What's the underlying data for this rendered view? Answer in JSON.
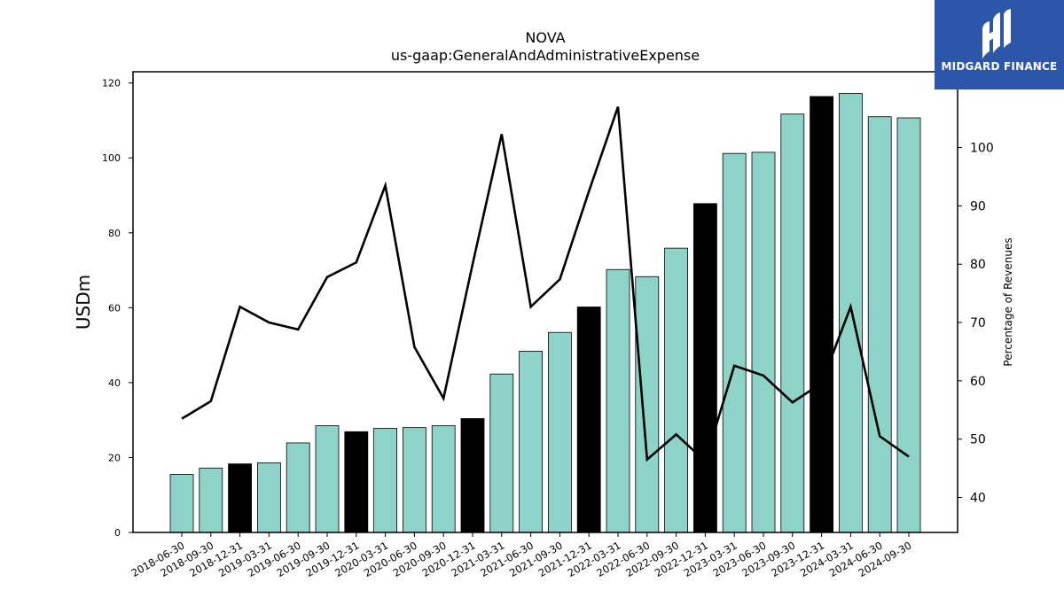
{
  "chart_data": {
    "type": "bar",
    "title": "NOVA",
    "subtitle": "us-gaap:GeneralAndAdministrativeExpense",
    "ylabel": "USDm",
    "y2label": "Percentage of Revenues",
    "ylim": [
      0,
      123
    ],
    "y2lim": [
      34,
      113
    ],
    "yticks": [
      0,
      20,
      40,
      60,
      80,
      100,
      120
    ],
    "y2ticks": [
      40,
      50,
      60,
      70,
      80,
      90,
      100
    ],
    "categories": [
      "2018-06-30",
      "2018-09-30",
      "2018-12-31",
      "2019-03-31",
      "2019-06-30",
      "2019-09-30",
      "2019-12-31",
      "2020-03-31",
      "2020-06-30",
      "2020-09-30",
      "2020-12-31",
      "2021-03-31",
      "2021-06-30",
      "2021-09-30",
      "2021-12-31",
      "2022-03-31",
      "2022-06-30",
      "2022-09-30",
      "2022-12-31",
      "2023-03-31",
      "2023-06-30",
      "2023-09-30",
      "2023-12-31",
      "2024-03-31",
      "2024-06-30",
      "2024-09-30"
    ],
    "series": [
      {
        "type": "bar",
        "values": [
          15.5,
          17.2,
          18.3,
          18.6,
          23.9,
          28.5,
          26.9,
          27.8,
          28.0,
          28.5,
          30.4,
          42.3,
          48.4,
          53.4,
          60.2,
          70.2,
          68.3,
          75.9,
          87.8,
          101.2,
          101.5,
          111.7,
          116.4,
          117.2,
          111.0,
          110.7
        ],
        "highlight": [
          false,
          false,
          true,
          false,
          false,
          false,
          true,
          false,
          false,
          false,
          true,
          false,
          false,
          false,
          true,
          false,
          false,
          false,
          true,
          false,
          false,
          false,
          true,
          false,
          false,
          false
        ],
        "color": "#8dd3c7",
        "highlight_color": "#000000"
      },
      {
        "type": "line",
        "axis": "right",
        "values": [
          53.5,
          56.5,
          72.7,
          70.0,
          68.8,
          77.8,
          80.3,
          93.5,
          65.8,
          57.0,
          80.0,
          102.3,
          72.7,
          77.4,
          92.5,
          107.0,
          46.5,
          50.8,
          46.2,
          62.6,
          60.9,
          56.3,
          59.6,
          72.7,
          50.5,
          47.0
        ],
        "color": "#000000"
      }
    ]
  },
  "logo": {
    "text": "MIDGARD FINANCE",
    "bg": "#2d56a8"
  }
}
